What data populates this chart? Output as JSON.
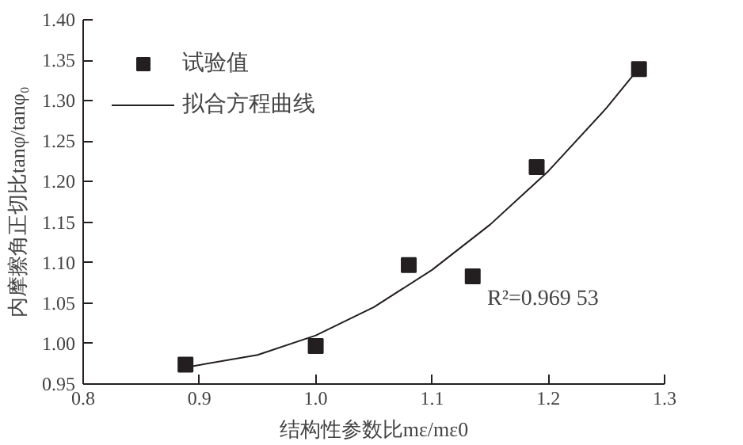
{
  "chart_data": {
    "type": "scatter",
    "xlabel": "结构性参数比mε/mε0",
    "ylabel": "内摩擦角正切比tanφ/tanφ₀",
    "xlim": [
      0.8,
      1.3
    ],
    "ylim": [
      0.95,
      1.4
    ],
    "xticks": [
      {
        "value": 0.8,
        "label": "0.8"
      },
      {
        "value": 0.9,
        "label": "0.9"
      },
      {
        "value": 1.0,
        "label": "1.0"
      },
      {
        "value": 1.1,
        "label": "1.1"
      },
      {
        "value": 1.2,
        "label": "1.2"
      },
      {
        "value": 1.3,
        "label": "1.3"
      }
    ],
    "yticks": [
      {
        "value": 0.95,
        "label": "0.95"
      },
      {
        "value": 1.0,
        "label": "1.00"
      },
      {
        "value": 1.05,
        "label": "1.05"
      },
      {
        "value": 1.1,
        "label": "1.10"
      },
      {
        "value": 1.15,
        "label": "1.15"
      },
      {
        "value": 1.2,
        "label": "1.20"
      },
      {
        "value": 1.25,
        "label": "1.25"
      },
      {
        "value": 1.3,
        "label": "1.30"
      },
      {
        "value": 1.35,
        "label": "1.35"
      },
      {
        "value": 1.4,
        "label": "1.40"
      }
    ],
    "series": [
      {
        "name": "试验值",
        "marker": "square",
        "color": "#231f20",
        "x": [
          0.888,
          1.0,
          1.08,
          1.135,
          1.19,
          1.278
        ],
        "values": [
          0.974,
          0.997,
          1.097,
          1.083,
          1.218,
          1.339
        ]
      },
      {
        "name": "拟合方程曲线",
        "type": "line",
        "line_style": "solid",
        "color": "#231f20",
        "x": [
          0.89,
          0.95,
          1.0,
          1.05,
          1.1,
          1.15,
          1.2,
          1.25,
          1.275
        ],
        "values": [
          0.971,
          0.986,
          1.01,
          1.045,
          1.091,
          1.147,
          1.213,
          1.291,
          1.335
        ]
      }
    ],
    "annotations": [
      "R²=0.969 53"
    ],
    "legend": "top left",
    "grid": false
  }
}
